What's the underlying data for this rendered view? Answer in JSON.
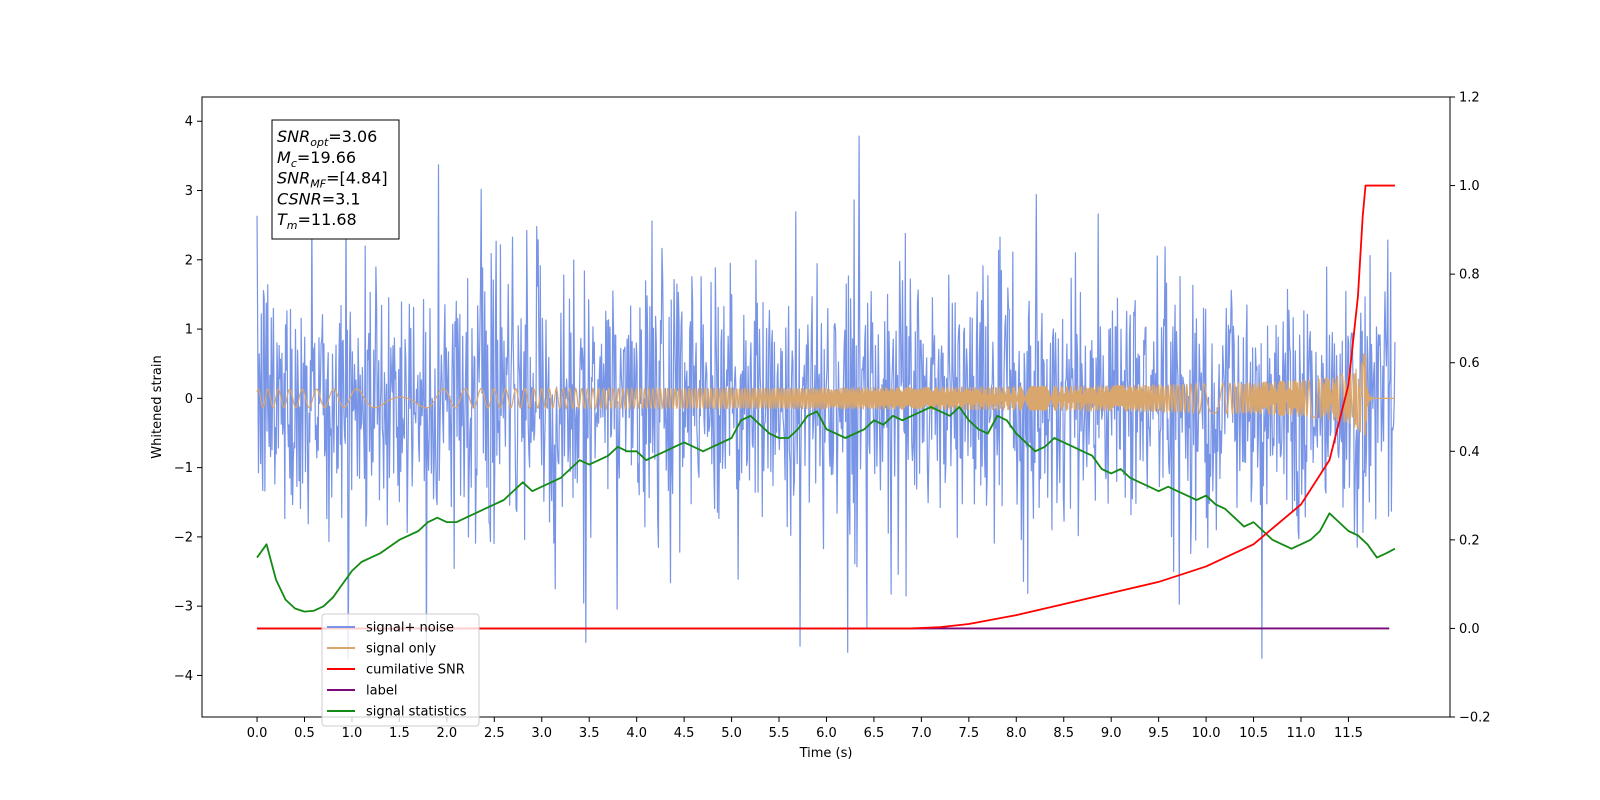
{
  "chart_data": {
    "type": "line",
    "title": "",
    "xlabel": "Time (s)",
    "ylabel": "Whitened strain",
    "y2label": "",
    "xlim": [
      -0.58,
      12.57
    ],
    "ylim": [
      -4.6,
      4.35
    ],
    "y2lim": [
      -0.2,
      1.2
    ],
    "x_ticks": [
      0.0,
      0.5,
      1.0,
      1.5,
      2.0,
      2.5,
      3.0,
      3.5,
      4.0,
      4.5,
      5.0,
      5.5,
      6.0,
      6.5,
      7.0,
      7.5,
      8.0,
      8.5,
      9.0,
      9.5,
      10.0,
      10.5,
      11.0,
      11.5
    ],
    "x_tick_labels": [
      "0.0",
      "0.5",
      "1.0",
      "1.5",
      "2.0",
      "2.5",
      "3.0",
      "3.5",
      "4.0",
      "4.5",
      "5.0",
      "5.5",
      "6.0",
      "6.5",
      "7.0",
      "7.5",
      "8.0",
      "8.5",
      "9.0",
      "9.5",
      "10.0",
      "10.5",
      "11.0",
      "11.5"
    ],
    "y_ticks": [
      -4,
      -3,
      -2,
      -1,
      0,
      1,
      2,
      3,
      4
    ],
    "y_tick_labels": [
      "−4",
      "−3",
      "−2",
      "−1",
      "0",
      "1",
      "2",
      "3",
      "4"
    ],
    "y2_ticks": [
      -0.2,
      0.0,
      0.2,
      0.4,
      0.6,
      0.8,
      1.0,
      1.2
    ],
    "y2_tick_labels": [
      "−0.2",
      "0.0",
      "0.2",
      "0.4",
      "0.6",
      "0.8",
      "1.0",
      "1.2"
    ],
    "grid": false,
    "legend_position": "bottom-left",
    "annotation": {
      "lines": [
        {
          "base": "SNR",
          "sub": "opt",
          "value": "=3.06"
        },
        {
          "base": "M",
          "sub": "c",
          "value": "=19.66"
        },
        {
          "base": "SNR",
          "sub": "MF",
          "value": "=[4.84]"
        },
        {
          "base": "CSNR",
          "sub": "",
          "value": "=3.1"
        },
        {
          "base": "T",
          "sub": "m",
          "value": "=11.68"
        }
      ]
    },
    "series": [
      {
        "name": "signal+ noise",
        "axis": "left",
        "color": "#7894e6",
        "x_range": [
          0.0,
          11.99
        ],
        "envelope_upper": 1.4,
        "envelope_lower": -1.4,
        "peak_max": 3.94,
        "peak_min": -4.1
      },
      {
        "name": "signal only",
        "axis": "left",
        "color": "#d9a66e",
        "x_range": [
          0.0,
          11.99
        ],
        "chirp": {
          "t_merger": 11.68,
          "peak_amplitude": 0.65
        }
      },
      {
        "name": "cumilative SNR",
        "axis": "right",
        "color": "#ff0000",
        "x": [
          0.0,
          6.9,
          7.2,
          7.5,
          8.0,
          8.5,
          9.0,
          9.5,
          10.0,
          10.5,
          11.0,
          11.3,
          11.5,
          11.6,
          11.65,
          11.68,
          11.99
        ],
        "y": [
          0.0,
          0.0,
          0.003,
          0.01,
          0.03,
          0.055,
          0.08,
          0.105,
          0.14,
          0.19,
          0.28,
          0.38,
          0.55,
          0.75,
          0.93,
          1.0,
          1.0
        ]
      },
      {
        "name": "label",
        "axis": "right",
        "color": "#7a0a7a",
        "x": [
          0.0,
          11.93
        ],
        "y": [
          0.0,
          0.0
        ]
      },
      {
        "name": "signal statistics",
        "axis": "right",
        "color": "#138a13",
        "x": [
          0.0,
          0.1,
          0.2,
          0.3,
          0.4,
          0.5,
          0.6,
          0.7,
          0.8,
          0.9,
          1.0,
          1.1,
          1.2,
          1.3,
          1.4,
          1.5,
          1.6,
          1.7,
          1.8,
          1.9,
          2.0,
          2.1,
          2.2,
          2.3,
          2.4,
          2.5,
          2.6,
          2.7,
          2.8,
          2.9,
          3.0,
          3.1,
          3.2,
          3.3,
          3.4,
          3.5,
          3.6,
          3.7,
          3.8,
          3.9,
          4.0,
          4.1,
          4.2,
          4.3,
          4.4,
          4.5,
          4.6,
          4.7,
          4.8,
          4.9,
          5.0,
          5.1,
          5.2,
          5.3,
          5.4,
          5.5,
          5.6,
          5.7,
          5.8,
          5.9,
          6.0,
          6.1,
          6.2,
          6.3,
          6.4,
          6.5,
          6.6,
          6.7,
          6.8,
          6.9,
          7.0,
          7.1,
          7.2,
          7.3,
          7.4,
          7.5,
          7.6,
          7.7,
          7.8,
          7.9,
          8.0,
          8.1,
          8.2,
          8.3,
          8.4,
          8.5,
          8.6,
          8.7,
          8.8,
          8.9,
          9.0,
          9.1,
          9.2,
          9.3,
          9.4,
          9.5,
          9.6,
          9.7,
          9.8,
          9.9,
          10.0,
          10.1,
          10.2,
          10.3,
          10.4,
          10.5,
          10.6,
          10.7,
          10.8,
          10.9,
          11.0,
          11.1,
          11.2,
          11.3,
          11.4,
          11.5,
          11.6,
          11.7,
          11.8,
          11.9,
          11.99
        ],
        "y": [
          0.16,
          0.19,
          0.11,
          0.065,
          0.045,
          0.038,
          0.04,
          0.05,
          0.07,
          0.1,
          0.13,
          0.15,
          0.16,
          0.17,
          0.185,
          0.2,
          0.21,
          0.22,
          0.24,
          0.25,
          0.24,
          0.24,
          0.25,
          0.26,
          0.27,
          0.28,
          0.29,
          0.31,
          0.33,
          0.31,
          0.32,
          0.33,
          0.34,
          0.36,
          0.38,
          0.37,
          0.38,
          0.39,
          0.41,
          0.4,
          0.4,
          0.38,
          0.39,
          0.4,
          0.41,
          0.42,
          0.41,
          0.4,
          0.41,
          0.42,
          0.43,
          0.47,
          0.48,
          0.46,
          0.44,
          0.43,
          0.43,
          0.45,
          0.48,
          0.49,
          0.45,
          0.44,
          0.43,
          0.44,
          0.45,
          0.47,
          0.46,
          0.48,
          0.47,
          0.48,
          0.49,
          0.5,
          0.49,
          0.48,
          0.5,
          0.47,
          0.45,
          0.44,
          0.48,
          0.47,
          0.44,
          0.42,
          0.4,
          0.41,
          0.43,
          0.42,
          0.41,
          0.4,
          0.39,
          0.36,
          0.35,
          0.36,
          0.34,
          0.33,
          0.32,
          0.31,
          0.32,
          0.31,
          0.3,
          0.29,
          0.3,
          0.28,
          0.27,
          0.25,
          0.23,
          0.24,
          0.22,
          0.2,
          0.19,
          0.18,
          0.19,
          0.2,
          0.22,
          0.26,
          0.24,
          0.22,
          0.21,
          0.19,
          0.16,
          0.17,
          0.18
        ]
      }
    ]
  }
}
